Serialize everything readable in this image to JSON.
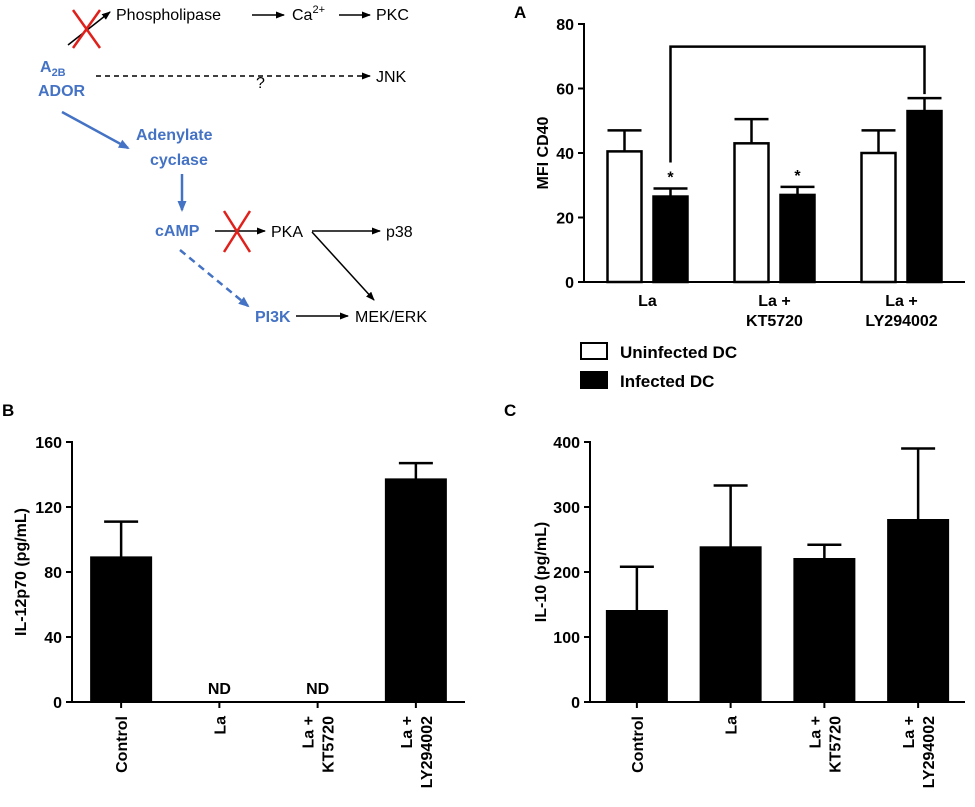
{
  "diagram": {
    "receptor_main": "A",
    "receptor_sub": "2B",
    "receptor_line2": "ADOR",
    "phospholipase": "Phospholipase",
    "ca_main": "Ca",
    "ca_sup": "2+",
    "pkc": "PKC",
    "question": "?",
    "jnk": "JNK",
    "adenylate_line1": "Adenylate",
    "adenylate_line2": "cyclase",
    "camp": "cAMP",
    "pka": "PKA",
    "p38": "p38",
    "pi3k": "PI3K",
    "mekerk": "MEK/ERK",
    "colors": {
      "blue": "#4472c4",
      "red": "#e0201b",
      "black": "#000000"
    }
  },
  "legend": {
    "uninfected": "Uninfected DC",
    "infected": "Infected DC"
  },
  "chart_data": [
    {
      "panel": "A",
      "type": "bar",
      "ylabel": "MFI CD40",
      "ylim": [
        0,
        80
      ],
      "yticks": [
        0,
        20,
        40,
        60,
        80
      ],
      "categories": [
        [
          "La"
        ],
        [
          "La +",
          "KT5720"
        ],
        [
          "La +",
          "LY294002"
        ]
      ],
      "series": [
        {
          "name": "Uninfected DC",
          "fill": "#ffffff",
          "values": [
            40.5,
            43,
            40
          ],
          "errors": [
            6.5,
            7.5,
            7
          ]
        },
        {
          "name": "Infected DC",
          "fill": "#000000",
          "values": [
            26.5,
            27,
            53
          ],
          "errors": [
            2.5,
            2.5,
            4
          ]
        }
      ],
      "annotations": [
        "*",
        "*"
      ]
    },
    {
      "panel": "B",
      "type": "bar",
      "ylabel": "IL-12p70 (pg/mL)",
      "ylim": [
        0,
        160
      ],
      "yticks": [
        0,
        40,
        80,
        120,
        160
      ],
      "categories": [
        [
          "Control"
        ],
        [
          "La"
        ],
        [
          "La +",
          "KT5720"
        ],
        [
          "La +",
          "LY294002"
        ]
      ],
      "values": [
        89,
        null,
        null,
        137
      ],
      "errors": [
        22,
        null,
        null,
        10
      ],
      "nd_labels": [
        "",
        "ND",
        "ND",
        ""
      ]
    },
    {
      "panel": "C",
      "type": "bar",
      "ylabel": "IL-10 (pg/mL)",
      "ylim": [
        0,
        400
      ],
      "yticks": [
        0,
        100,
        200,
        300,
        400
      ],
      "categories": [
        [
          "Control"
        ],
        [
          "La"
        ],
        [
          "La +",
          "KT5720"
        ],
        [
          "La +",
          "LY294002"
        ]
      ],
      "values": [
        140,
        238,
        220,
        280
      ],
      "errors": [
        68,
        95,
        22,
        110
      ]
    }
  ]
}
